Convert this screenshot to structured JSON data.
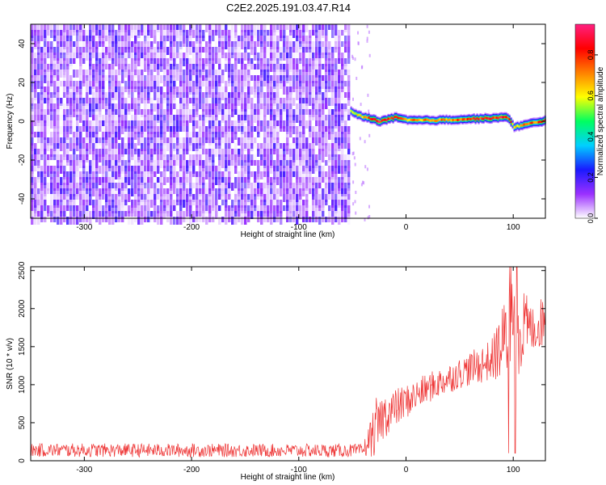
{
  "title": "C2E2.2025.191.03.47.R14",
  "chart_data": [
    {
      "type": "heatmap",
      "xlabel": "Height of straight line (km)",
      "ylabel": "Frequency (Hz)",
      "xlim": [
        -350,
        130
      ],
      "ylim": [
        -50,
        50
      ],
      "xticks": [
        -300,
        -200,
        -100,
        0,
        100
      ],
      "xtick_labels": [
        "-300",
        "-200",
        "-100",
        "0",
        "100"
      ],
      "yticks": [
        -40,
        -20,
        0,
        20,
        40
      ],
      "ytick_labels": [
        "-40",
        "-20",
        "0",
        "20",
        "40"
      ],
      "colorbar": {
        "label": "Normalized spectral amplitude",
        "range": [
          0,
          0.95
        ],
        "ticks": [
          0,
          0.2,
          0.4,
          0.6,
          0.8
        ],
        "tick_labels": [
          "0.0",
          "0.2",
          "0.4",
          "0.6",
          "0.8"
        ],
        "colors": [
          "#ffffff",
          "#9b30ff",
          "#1a1aff",
          "#00d0ff",
          "#00ff60",
          "#ffff00",
          "#ff8000",
          "#ff0000",
          "#ff2080"
        ]
      },
      "noise_region": {
        "x_range": [
          -350,
          -52
        ],
        "level_range": [
          0.0,
          0.2
        ]
      },
      "signal_track": {
        "x": [
          -52,
          -45,
          -35,
          -25,
          -10,
          0,
          25,
          50,
          75,
          95,
          100,
          130
        ],
        "frequency": [
          5,
          3,
          1.5,
          0,
          2,
          0.5,
          0.5,
          1,
          1.5,
          2,
          -3,
          0.5
        ],
        "level": [
          0.5,
          0.6,
          0.8,
          0.85,
          0.85,
          0.7,
          0.7,
          0.75,
          0.8,
          0.85,
          0.6,
          0.85
        ]
      }
    },
    {
      "type": "line",
      "xlabel": "Height of straight line (km)",
      "ylabel": "SNR (10 * v/v)",
      "xlim": [
        -350,
        130
      ],
      "ylim": [
        0,
        2550
      ],
      "xticks": [
        -300,
        -200,
        -100,
        0,
        100
      ],
      "xtick_labels": [
        "-300",
        "-200",
        "-100",
        "0",
        "100"
      ],
      "yticks": [
        0,
        500,
        1000,
        1500,
        2000,
        2500
      ],
      "ytick_labels": [
        "0",
        "500",
        "1000",
        "1500",
        "2000",
        "2500"
      ],
      "series_color": "#ee3333",
      "envelope": {
        "x": [
          -350,
          -40,
          -28,
          -20,
          0,
          20,
          50,
          80,
          100,
          120,
          130
        ],
        "low": [
          50,
          45,
          60,
          300,
          550,
          750,
          950,
          1050,
          1000,
          1450,
          1500
        ],
        "high": [
          230,
          220,
          800,
          900,
          1000,
          1150,
          1350,
          1600,
          2500,
          2000,
          2250
        ]
      }
    }
  ]
}
